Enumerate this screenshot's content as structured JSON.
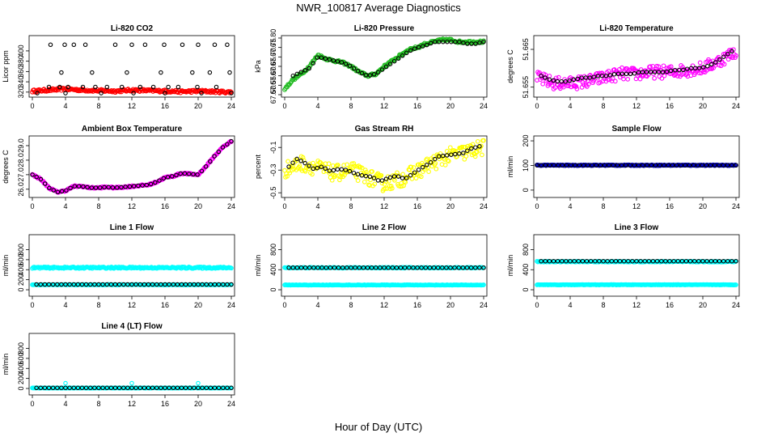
{
  "figure": {
    "title": "NWR_100817  Average Diagnostics",
    "xlabel": "Hour of Day (UTC)"
  },
  "colors": {
    "axis": "#000000",
    "black_points": "#000000",
    "red": "#ff0000",
    "green": "#22bb22",
    "magenta": "#ff00ff",
    "yellow": "#ffff00",
    "cyan": "#00ffff",
    "blue": "#0000cc"
  },
  "chart_data": [
    {
      "type": "scatter",
      "id": "li820-co2",
      "title": "Li-820 CO2",
      "ylabel": "Licor ppm",
      "xlim": [
        0,
        24
      ],
      "ylim": [
        315,
        425
      ],
      "xticks": [
        0,
        4,
        8,
        12,
        16,
        20,
        24
      ],
      "yticks": [
        320,
        340,
        360,
        380,
        400
      ],
      "series": [
        {
          "color": "#ff0000",
          "style": "dense",
          "x": [
            0,
            2,
            4,
            6,
            8,
            10,
            12,
            14,
            16,
            18,
            20,
            22,
            24
          ],
          "y": [
            322,
            324,
            326,
            324,
            323,
            322,
            324,
            323,
            322,
            321,
            322,
            321,
            320
          ],
          "jitter": 2.5
        },
        {
          "color": "#000000",
          "style": "sparse",
          "x": [
            0.6,
            2.0,
            2.2,
            3.3,
            3.5,
            3.9,
            4.0,
            4.3,
            5.0,
            6.1,
            6.4,
            7.2,
            7.6,
            8.3,
            9.0,
            10.0,
            10.8,
            11.4,
            12.0,
            12.2,
            13.0,
            13.6,
            14.6,
            15.5,
            15.9,
            16.0,
            16.4,
            17.6,
            18.1,
            19.3,
            19.9,
            20.0,
            20.4,
            21.4,
            22.0,
            22.2,
            23.5,
            23.8,
            24.0
          ],
          "y": [
            318,
            330,
            412,
            330,
            358,
            412,
            318,
            330,
            412,
            330,
            412,
            358,
            330,
            318,
            330,
            412,
            330,
            358,
            412,
            318,
            330,
            412,
            330,
            358,
            412,
            318,
            330,
            330,
            412,
            358,
            330,
            412,
            318,
            358,
            412,
            330,
            412,
            358,
            318
          ]
        }
      ]
    },
    {
      "type": "scatter",
      "id": "li820-pressure",
      "title": "Li-820 Pressure",
      "ylabel": "kPa",
      "xlim": [
        0,
        24
      ],
      "ylim": [
        67.5,
        67.8
      ],
      "xticks": [
        0,
        4,
        8,
        12,
        16,
        20,
        24
      ],
      "yticks": [
        67.5,
        67.55,
        67.6,
        67.65,
        67.7,
        67.75,
        67.8
      ],
      "ytick_labels": [
        "67.50",
        "67.55",
        "67.60",
        "67.65",
        "67.70",
        "67.75",
        "67.80"
      ],
      "series": [
        {
          "color": "#22bb22",
          "style": "dense",
          "x": [
            0,
            1,
            2,
            3,
            4,
            5,
            6,
            7,
            8,
            9,
            10,
            11,
            12,
            13,
            14,
            15,
            16,
            17,
            18,
            19,
            20,
            21,
            22,
            23,
            24
          ],
          "y": [
            67.53,
            67.58,
            67.61,
            67.65,
            67.71,
            67.69,
            67.68,
            67.67,
            67.65,
            67.62,
            67.6,
            67.61,
            67.65,
            67.68,
            67.71,
            67.74,
            67.75,
            67.77,
            67.78,
            67.79,
            67.79,
            67.78,
            67.78,
            67.78,
            67.78
          ],
          "jitter": 0.006
        },
        {
          "color": "#000000",
          "style": "follow",
          "x": [
            1,
            2,
            3,
            4,
            5,
            6,
            7,
            8,
            9,
            10,
            11,
            12,
            13,
            14,
            15,
            16,
            17,
            18,
            19,
            20,
            21,
            22,
            23,
            24
          ],
          "y": [
            67.6,
            67.62,
            67.64,
            67.7,
            67.69,
            67.68,
            67.67,
            67.65,
            67.62,
            67.6,
            67.61,
            67.64,
            67.67,
            67.7,
            67.73,
            67.75,
            67.76,
            67.78,
            67.78,
            67.78,
            67.78,
            67.77,
            67.77,
            67.78
          ]
        }
      ]
    },
    {
      "type": "scatter",
      "id": "li820-temperature",
      "title": "Li-820 Temperature",
      "ylabel": "degrees C",
      "xlim": [
        0,
        24
      ],
      "ylim": [
        51.653,
        51.668
      ],
      "xticks": [
        0,
        4,
        8,
        12,
        16,
        20,
        24
      ],
      "yticks": [
        51.655,
        51.665
      ],
      "ytick_labels": [
        "51.655",
        "51.665"
      ],
      "series": [
        {
          "color": "#ff00ff",
          "style": "dense",
          "x": [
            0,
            2,
            4,
            6,
            8,
            10,
            12,
            14,
            16,
            18,
            20,
            22,
            24
          ],
          "y": [
            51.6575,
            51.656,
            51.656,
            51.6565,
            51.6575,
            51.6585,
            51.6585,
            51.659,
            51.659,
            51.6595,
            51.66,
            51.662,
            51.6645
          ],
          "jitter": 0.0017
        },
        {
          "color": "#000000",
          "style": "follow",
          "x": [
            0.5,
            1.5,
            2.5,
            3.5,
            4.5,
            5.5,
            6.5,
            7.5,
            8.5,
            9.5,
            10.5,
            11.5,
            12.5,
            13.5,
            14.5,
            15.5,
            16.5,
            17.5,
            18.5,
            19.5,
            20.5,
            21.5,
            22.5,
            23.5
          ],
          "y": [
            51.658,
            51.657,
            51.6565,
            51.6565,
            51.657,
            51.6575,
            51.6575,
            51.658,
            51.658,
            51.6585,
            51.6585,
            51.6585,
            51.659,
            51.659,
            51.659,
            51.659,
            51.6595,
            51.6595,
            51.66,
            51.66,
            51.6605,
            51.6615,
            51.663,
            51.6645
          ]
        }
      ]
    },
    {
      "type": "scatter",
      "id": "ambient-box-temperature",
      "title": "Ambient Box Temperature",
      "ylabel": "degrees C",
      "xlim": [
        0,
        24
      ],
      "ylim": [
        25.6,
        29.5
      ],
      "xticks": [
        0,
        4,
        8,
        12,
        16,
        20,
        24
      ],
      "yticks": [
        26.0,
        27.0,
        28.0,
        29.0
      ],
      "ytick_labels": [
        "26.0",
        "27.0",
        "28.0",
        "29.0"
      ],
      "series": [
        {
          "color": "#ff00ff",
          "style": "dense",
          "x": [
            0,
            1,
            2,
            3,
            4,
            5,
            6,
            7,
            8,
            9,
            10,
            11,
            12,
            13,
            14,
            15,
            16,
            17,
            18,
            19,
            20,
            21,
            22,
            23,
            24
          ],
          "y": [
            27.0,
            26.7,
            26.1,
            25.8,
            25.9,
            26.2,
            26.2,
            26.1,
            26.1,
            26.15,
            26.1,
            26.15,
            26.2,
            26.25,
            26.3,
            26.5,
            26.8,
            26.9,
            27.1,
            27.05,
            27.0,
            27.6,
            28.3,
            28.9,
            29.3
          ],
          "jitter": 0.05
        },
        {
          "color": "#000000",
          "style": "follow",
          "x": [
            0,
            1,
            2,
            3,
            4,
            5,
            6,
            7,
            8,
            9,
            10,
            11,
            12,
            13,
            14,
            15,
            16,
            17,
            18,
            19,
            20,
            21,
            22,
            23,
            24
          ],
          "y": [
            27.0,
            26.7,
            26.1,
            25.8,
            25.9,
            26.2,
            26.2,
            26.1,
            26.1,
            26.15,
            26.1,
            26.15,
            26.2,
            26.25,
            26.3,
            26.5,
            26.8,
            26.9,
            27.1,
            27.05,
            27.0,
            27.6,
            28.3,
            28.9,
            29.3
          ]
        }
      ]
    },
    {
      "type": "scatter",
      "id": "gas-stream-rh",
      "title": "Gas Stream RH",
      "ylabel": "percent",
      "xlim": [
        0,
        24
      ],
      "ylim": [
        -0.52,
        -0.02
      ],
      "xticks": [
        0,
        4,
        8,
        12,
        16,
        20,
        24
      ],
      "yticks": [
        -0.5,
        -0.3,
        -0.1
      ],
      "ytick_labels": [
        "-0.5",
        "-0.3",
        "-0.1"
      ],
      "series": [
        {
          "color": "#ffff00",
          "style": "dense",
          "x": [
            0,
            2,
            4,
            6,
            8,
            10,
            12,
            14,
            16,
            18,
            20,
            22,
            24
          ],
          "y": [
            -0.3,
            -0.24,
            -0.28,
            -0.33,
            -0.3,
            -0.36,
            -0.42,
            -0.38,
            -0.31,
            -0.23,
            -0.17,
            -0.14,
            -0.1
          ],
          "jitter": 0.07
        },
        {
          "color": "#000000",
          "style": "follow",
          "x": [
            0.5,
            1.5,
            2.5,
            3.5,
            4.5,
            5.5,
            6.5,
            7.5,
            8.5,
            9.5,
            10.5,
            11.5,
            12.5,
            13.5,
            14.5,
            15.5,
            16.5,
            17.5,
            18.5,
            19.5,
            20.5,
            21.5,
            22.5,
            23.5
          ],
          "y": [
            -0.27,
            -0.2,
            -0.24,
            -0.29,
            -0.27,
            -0.31,
            -0.29,
            -0.3,
            -0.33,
            -0.35,
            -0.36,
            -0.4,
            -0.37,
            -0.35,
            -0.38,
            -0.33,
            -0.28,
            -0.24,
            -0.18,
            -0.17,
            -0.16,
            -0.15,
            -0.11,
            -0.09
          ]
        }
      ]
    },
    {
      "type": "scatter",
      "id": "sample-flow",
      "title": "Sample Flow",
      "ylabel": "ml/min",
      "xlim": [
        0,
        24
      ],
      "ylim": [
        -20,
        210
      ],
      "xticks": [
        0,
        4,
        8,
        12,
        16,
        20,
        24
      ],
      "yticks": [
        0,
        100,
        200
      ],
      "series": [
        {
          "color": "#0000cc",
          "style": "dense",
          "x": [
            0,
            24
          ],
          "y": [
            101,
            101
          ],
          "jitter": 1.5
        },
        {
          "color": "#000000",
          "style": "follow",
          "x": [
            0,
            24
          ],
          "y": [
            101,
            101
          ]
        }
      ]
    },
    {
      "type": "scatter",
      "id": "line-1-flow",
      "title": "Line 1 Flow",
      "ylabel": "ml/min",
      "xlim": [
        0,
        24
      ],
      "ylim": [
        -80,
        1050
      ],
      "xticks": [
        0,
        4,
        8,
        12,
        16,
        20,
        24
      ],
      "yticks": [
        0,
        200,
        400,
        600,
        800
      ],
      "series": [
        {
          "color": "#00ffff",
          "style": "dense",
          "x": [
            0,
            24
          ],
          "y": [
            440,
            440
          ],
          "jitter": 15
        },
        {
          "color": "#00ffff",
          "style": "dense",
          "x": [
            0,
            24
          ],
          "y": [
            100,
            100
          ],
          "jitter": 5
        },
        {
          "color": "#000000",
          "style": "follow",
          "x": [
            0.5,
            24
          ],
          "y": [
            105,
            105
          ]
        }
      ]
    },
    {
      "type": "scatter",
      "id": "line-2-flow",
      "title": "Line 2 Flow",
      "ylabel": "ml/min",
      "xlim": [
        0,
        24
      ],
      "ylim": [
        -80,
        1050
      ],
      "xticks": [
        0,
        4,
        8,
        12,
        16,
        20,
        24
      ],
      "yticks": [
        0,
        400,
        800
      ],
      "series": [
        {
          "color": "#00ffff",
          "style": "dense",
          "x": [
            0,
            24
          ],
          "y": [
            440,
            440
          ],
          "jitter": 8
        },
        {
          "color": "#00ffff",
          "style": "dense",
          "x": [
            0,
            24
          ],
          "y": [
            95,
            95
          ],
          "jitter": 4
        },
        {
          "color": "#000000",
          "style": "follow",
          "x": [
            0.5,
            24
          ],
          "y": [
            440,
            440
          ]
        }
      ]
    },
    {
      "type": "scatter",
      "id": "line-3-flow",
      "title": "Line 3 Flow",
      "ylabel": "ml/min",
      "xlim": [
        0,
        24
      ],
      "ylim": [
        -80,
        1050
      ],
      "xticks": [
        0,
        4,
        8,
        12,
        16,
        20,
        24
      ],
      "yticks": [
        0,
        400,
        800
      ],
      "series": [
        {
          "color": "#00ffff",
          "style": "dense",
          "x": [
            0,
            24
          ],
          "y": [
            560,
            560
          ],
          "jitter": 8
        },
        {
          "color": "#00ffff",
          "style": "dense",
          "x": [
            0,
            24
          ],
          "y": [
            100,
            100
          ],
          "jitter": 4
        },
        {
          "color": "#000000",
          "style": "follow",
          "x": [
            0.5,
            24
          ],
          "y": [
            570,
            570
          ]
        }
      ]
    },
    {
      "type": "scatter",
      "id": "line-4-lt-flow",
      "title": "Line 4 (LT) Flow",
      "ylabel": "ml/min",
      "xlim": [
        0,
        24
      ],
      "ylim": [
        -80,
        1050
      ],
      "xticks": [
        0,
        4,
        8,
        12,
        16,
        20,
        24
      ],
      "yticks": [
        0,
        200,
        400,
        600,
        800
      ],
      "series": [
        {
          "color": "#00ffff",
          "style": "dense",
          "x": [
            0,
            24
          ],
          "y": [
            10,
            10
          ],
          "jitter": 3
        },
        {
          "color": "#00ffff",
          "style": "sparse",
          "x": [
            4,
            12,
            20,
            0.1
          ],
          "y": [
            105,
            105,
            105,
            10
          ]
        },
        {
          "color": "#000000",
          "style": "follow",
          "x": [
            0.5,
            24
          ],
          "y": [
            12,
            12
          ]
        }
      ]
    }
  ]
}
